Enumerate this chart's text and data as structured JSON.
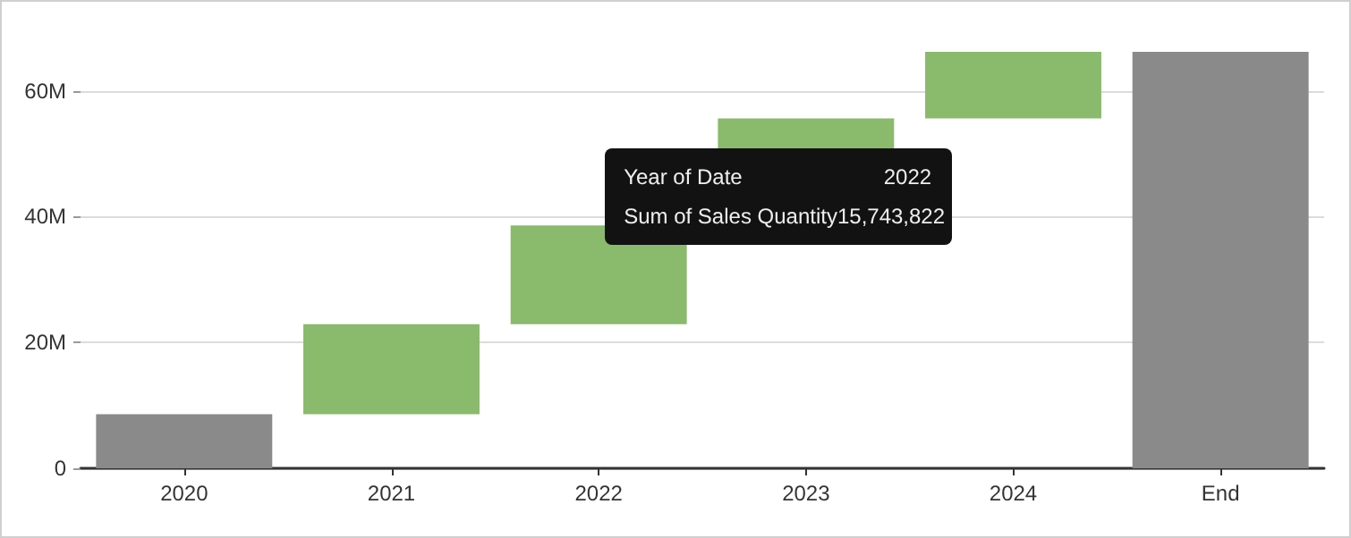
{
  "chart_data": {
    "type": "bar",
    "categories": [
      "2020",
      "2021",
      "2022",
      "2023",
      "2024",
      "End"
    ],
    "base": [
      0,
      8600000,
      22900000,
      38600000,
      55600000,
      0
    ],
    "values": [
      8600000,
      14300000,
      15700000,
      17000000,
      10600000,
      66200000
    ],
    "colors": [
      "#8a8a8a",
      "#8aba6c",
      "#8aba6c",
      "#8aba6c",
      "#8aba6c",
      "#8a8a8a"
    ],
    "ylim": [
      0,
      66200000
    ],
    "yticks": [
      {
        "value": 0,
        "label": "0"
      },
      {
        "value": 20000000,
        "label": "20M"
      },
      {
        "value": 40000000,
        "label": "40M"
      },
      {
        "value": 60000000,
        "label": "60M"
      }
    ],
    "grid": "y",
    "annotations": [
      "Year of Date",
      "2022",
      "Sum of Sales Quantity",
      "15,743,822"
    ]
  }
}
